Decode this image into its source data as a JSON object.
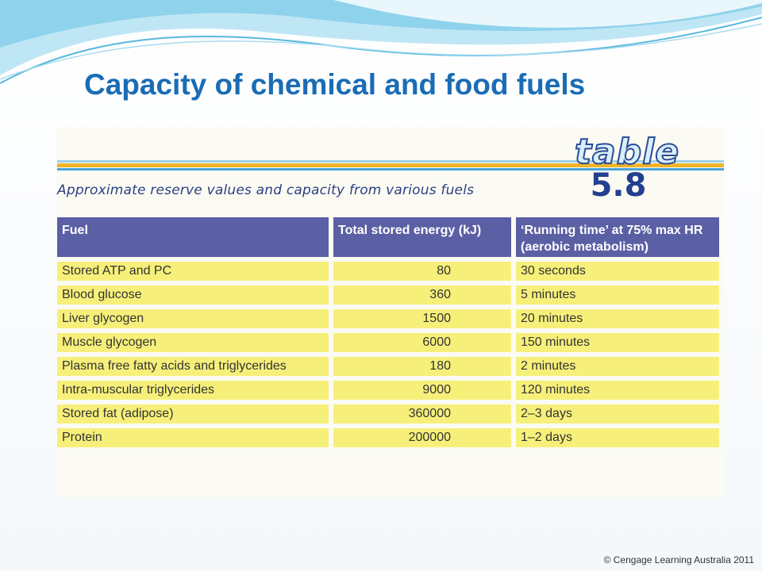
{
  "slide": {
    "title": "Capacity of chemical and food fuels",
    "copyright": "© Cengage Learning Australia 2011"
  },
  "figure": {
    "badge_word": "table",
    "badge_number": "5.8",
    "caption": "Approximate reserve values and capacity from various fuels",
    "columns": [
      "Fuel",
      "Total stored energy (kJ)",
      "‘Running time’ at 75% max HR (aerobic metabolism)"
    ],
    "rows": [
      {
        "fuel": "Stored ATP and PC",
        "energy": "80",
        "time": "30 seconds"
      },
      {
        "fuel": "Blood glucose",
        "energy": "360",
        "time": "5 minutes"
      },
      {
        "fuel": "Liver glycogen",
        "energy": "1500",
        "time": "20 minutes"
      },
      {
        "fuel": "Muscle glycogen",
        "energy": "6000",
        "time": "150 minutes"
      },
      {
        "fuel": "Plasma free fatty acids and triglycerides",
        "energy": "180",
        "time": "2 minutes"
      },
      {
        "fuel": "Intra-muscular triglycerides",
        "energy": "9000",
        "time": "120 minutes"
      },
      {
        "fuel": "Stored fat (adipose)",
        "energy": "360000",
        "time": "2–3 days"
      },
      {
        "fuel": "Protein",
        "energy": "200000",
        "time": "1–2 days"
      }
    ]
  },
  "colors": {
    "title": "#1a6cb5",
    "header_fill": "#5b5fa4",
    "row_fill": "#f6f07a"
  }
}
